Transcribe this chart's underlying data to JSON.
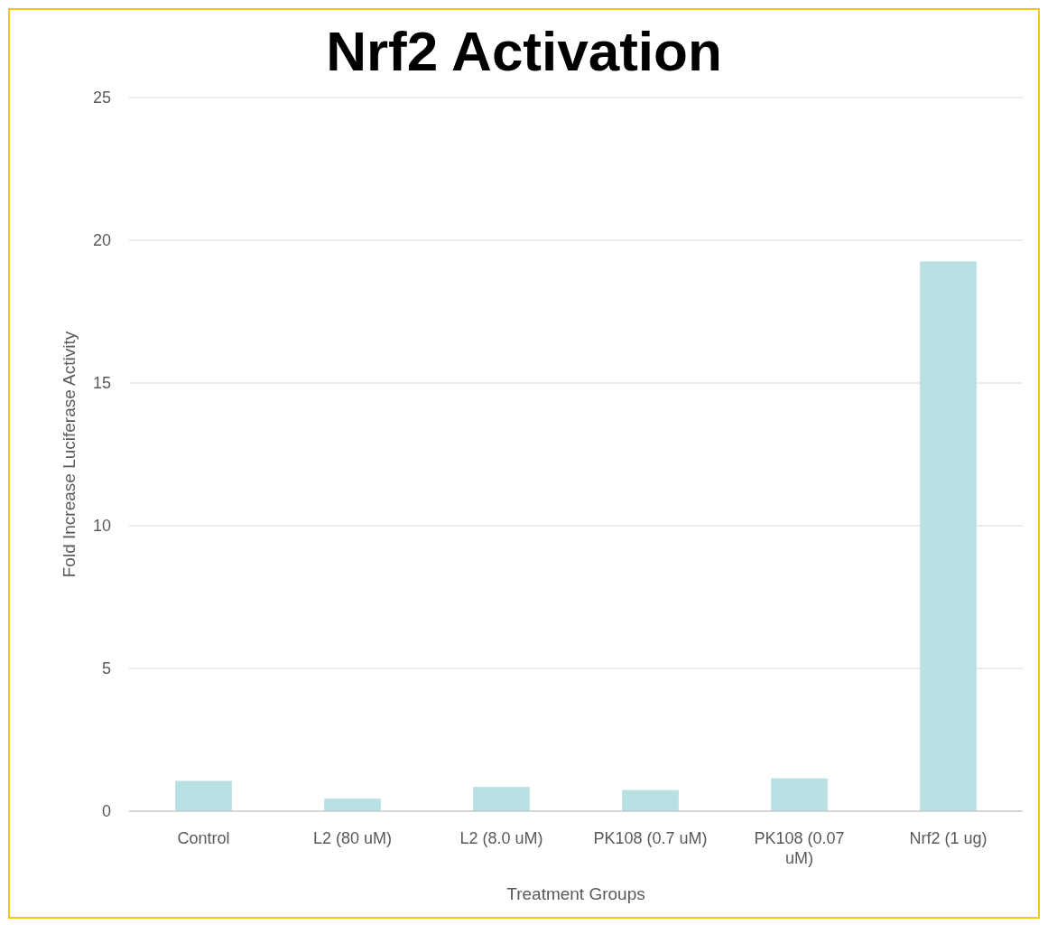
{
  "chart_data": {
    "type": "bar",
    "title": "Nrf2 Activation",
    "xlabel": "Treatment  Groups",
    "ylabel": "Fold Increase Luciferase  Activity",
    "categories": [
      "Control",
      "L2 (80 uM)",
      "L2 (8.0 uM)",
      "PK108 (0.7 uM)",
      "PK108 (0.07 uM)",
      "Nrf2 (1 ug)"
    ],
    "values": [
      1.06,
      0.44,
      0.85,
      0.74,
      1.15,
      19.26
    ],
    "color": "#b9e0e2",
    "ylim": [
      0,
      25
    ],
    "yticks": [
      0,
      5,
      10,
      15,
      20,
      25
    ],
    "grid": "y"
  }
}
